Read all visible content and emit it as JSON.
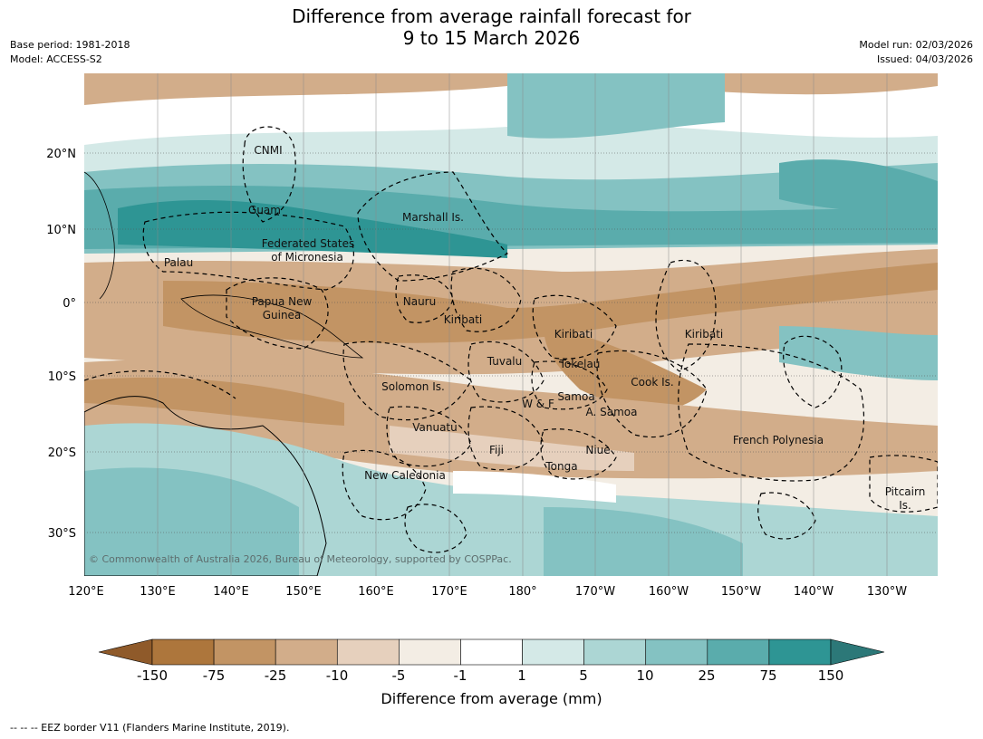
{
  "title_line1": "Difference from average rainfall forecast for",
  "title_line2": "9 to 15 March 2026",
  "meta_left": [
    "Base period: 1981-2018",
    "Model: ACCESS-S2"
  ],
  "meta_right": [
    "Model run: 02/03/2026",
    "Issued: 04/03/2026"
  ],
  "copyright": "© Commonwealth of Australia 2026, Bureau of Meteorology, supported by COSPPac.",
  "lat_ticks": [
    "20°N",
    "10°N",
    "0°",
    "10°S",
    "20°S",
    "30°S"
  ],
  "lon_ticks": [
    "120°E",
    "130°E",
    "140°E",
    "150°E",
    "160°E",
    "170°E",
    "180°",
    "170°W",
    "160°W",
    "150°W",
    "140°W",
    "130°W"
  ],
  "regions": [
    "CNMI",
    "Guam",
    "Marshall Is.",
    "Federated States",
    "of Micronesia",
    "Palau",
    "Papua New",
    "Guinea",
    "Nauru",
    "Kiribati",
    "Kiribati",
    "Kiribati",
    "Tuvalu",
    "Tokelau",
    "Cook Is.",
    "Solomon Is.",
    "W & F",
    "Samoa",
    "A. Samoa",
    "Vanuatu",
    "Fiji",
    "Niue",
    "Tonga",
    "French Polynesia",
    "New Caledonia",
    "Pitcairn",
    "Is."
  ],
  "colorbar": {
    "label": "Difference from average (mm)",
    "ticks": [
      "-150",
      "-75",
      "-25",
      "-10",
      "-5",
      "-1",
      "1",
      "5",
      "10",
      "25",
      "75",
      "150"
    ],
    "colors": {
      "extend_low": "#8f5a2a",
      "bins": [
        "#ad763c",
        "#c29464",
        "#d2ad8a",
        "#e6d0bd",
        "#f3ede4",
        "#ffffff",
        "#d4e9e7",
        "#acd6d4",
        "#84c2c2",
        "#5aacac",
        "#2e9594"
      ],
      "extend_high": "#2c7878"
    }
  },
  "footer": "--  --  -- EEZ border V11 (Flanders Marine Institute, 2019)."
}
